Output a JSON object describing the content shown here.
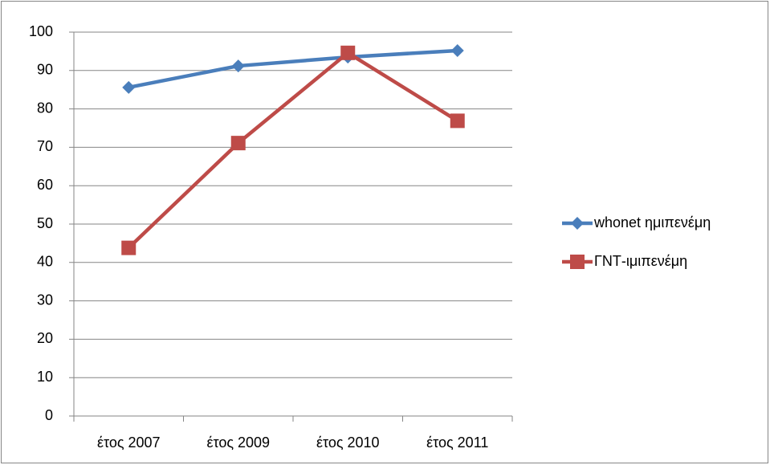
{
  "chart_data": {
    "type": "line",
    "categories": [
      "έτος 2007",
      "έτος 2009",
      "έτος 2010",
      "έτος 2011"
    ],
    "series": [
      {
        "name": "whonet ημιπενέμη",
        "color": "#4a7ebb",
        "marker": "diamond",
        "values": [
          85.6,
          91.2,
          93.5,
          95.2
        ]
      },
      {
        "name": "ΓΝΤ-ιμιπενέμη",
        "color": "#be4b48",
        "marker": "square",
        "values": [
          43.8,
          71.1,
          94.6,
          76.9
        ]
      }
    ],
    "ylim": [
      0,
      100
    ],
    "yticks": [
      0,
      10,
      20,
      30,
      40,
      50,
      60,
      70,
      80,
      90,
      100
    ],
    "grid": true,
    "legend": "right"
  }
}
